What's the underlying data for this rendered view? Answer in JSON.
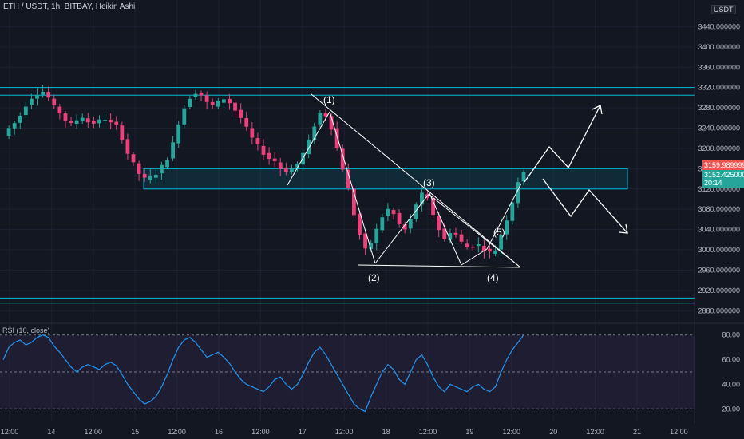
{
  "header": {
    "title": "ETH / USDT, 1h, BITBAY, Heikin Ashi",
    "currency_badge": "USDT",
    "top_price_clipped": "34 00"
  },
  "rsi": {
    "label": "RSI (10, close)"
  },
  "waves": [
    "(1)",
    "(2)",
    "(3)",
    "(4)",
    "(5)"
  ],
  "price_tags": {
    "last": "3159.989999",
    "current": "3152.425000",
    "countdown": "20:14",
    "last_color": "#ef5350",
    "current_color": "#26a69a"
  },
  "colors": {
    "background": "#131722",
    "bull": "#26a69a",
    "bear": "#ec407a",
    "zone": "#00bcd4",
    "rsi": "#2196f3",
    "annotation": "#ffffff"
  },
  "chart_data": [
    {
      "type": "candlestick",
      "title": "ETH / USDT, 1h, BITBAY, Heikin Ashi",
      "x_tick_labels": [
        "12:00",
        "14",
        "12:00",
        "15",
        "12:00",
        "16",
        "12:00",
        "17",
        "12:00",
        "18",
        "12:00",
        "19",
        "12:00",
        "20",
        "12:00",
        "21",
        "12:00"
      ],
      "y_tick_labels": [
        "3440.000000",
        "3400.000000",
        "3360.000000",
        "3320.000000",
        "3280.000000",
        "3240.000000",
        "3200.000000",
        "3160.000000",
        "3120.000000",
        "3080.000000",
        "3040.000000",
        "3000.000000",
        "2960.000000",
        "2920.000000",
        "2880.000000"
      ],
      "ylim": [
        2860,
        3480
      ],
      "close_path": [
        3225,
        3240,
        3250,
        3265,
        3285,
        3300,
        3308,
        3312,
        3300,
        3282,
        3270,
        3255,
        3248,
        3256,
        3262,
        3252,
        3250,
        3255,
        3258,
        3250,
        3245,
        3220,
        3190,
        3170,
        3150,
        3140,
        3145,
        3150,
        3165,
        3180,
        3210,
        3250,
        3280,
        3300,
        3310,
        3305,
        3290,
        3285,
        3292,
        3298,
        3290,
        3275,
        3260,
        3240,
        3220,
        3205,
        3190,
        3180,
        3175,
        3160,
        3155,
        3160,
        3170,
        3190,
        3215,
        3245,
        3270,
        3265,
        3240,
        3200,
        3160,
        3120,
        3070,
        3030,
        3000,
        3015,
        3040,
        3065,
        3080,
        3070,
        3050,
        3040,
        3060,
        3090,
        3110,
        3100,
        3070,
        3040,
        3020,
        3035,
        3030,
        3015,
        3005,
        3008,
        3010,
        3000,
        2995,
        3000,
        3030,
        3060,
        3095,
        3135,
        3150
      ],
      "zones": [
        {
          "low": 3305,
          "high": 3320
        },
        {
          "low": 3120,
          "high": 3160
        },
        {
          "low": 2895,
          "high": 2905
        }
      ],
      "projection": {
        "bullish": [
          3155,
          3200,
          3168,
          3270
        ],
        "bearish": [
          3128,
          3072,
          3120,
          3035
        ]
      }
    },
    {
      "type": "line",
      "title": "RSI (10, close)",
      "y_tick_labels": [
        "80.00",
        "60.00",
        "40.00",
        "20.00"
      ],
      "ylim": [
        15,
        85
      ],
      "levels": [
        80,
        50,
        20
      ],
      "values": [
        60,
        70,
        74,
        76,
        72,
        74,
        78,
        80,
        78,
        71,
        66,
        60,
        54,
        50,
        54,
        56,
        54,
        52,
        56,
        58,
        55,
        48,
        40,
        34,
        28,
        24,
        26,
        30,
        38,
        48,
        60,
        70,
        76,
        78,
        74,
        68,
        62,
        64,
        66,
        62,
        57,
        50,
        44,
        40,
        38,
        36,
        34,
        38,
        44,
        46,
        40,
        36,
        40,
        48,
        58,
        66,
        70,
        64,
        56,
        48,
        40,
        32,
        24,
        20,
        18,
        30,
        40,
        50,
        56,
        52,
        44,
        40,
        50,
        60,
        64,
        56,
        46,
        38,
        34,
        40,
        38,
        36,
        34,
        38,
        40,
        36,
        34,
        38,
        50,
        60,
        68,
        74,
        80
      ]
    }
  ]
}
